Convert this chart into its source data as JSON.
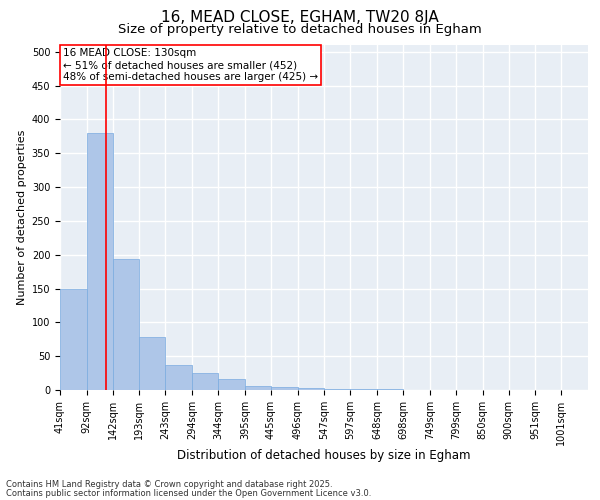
{
  "title1": "16, MEAD CLOSE, EGHAM, TW20 8JA",
  "title2": "Size of property relative to detached houses in Egham",
  "xlabel": "Distribution of detached houses by size in Egham",
  "ylabel": "Number of detached properties",
  "bar_edges": [
    41,
    92,
    142,
    193,
    243,
    294,
    344,
    395,
    445,
    496,
    547,
    597,
    648,
    698,
    749,
    799,
    850,
    900,
    951,
    1001,
    1052
  ],
  "bar_heights": [
    150,
    380,
    193,
    78,
    37,
    25,
    17,
    6,
    5,
    3,
    2,
    1,
    1,
    0,
    0,
    0,
    0,
    0,
    0,
    0
  ],
  "bar_color": "#aec6e8",
  "bar_edge_color": "#7aabe0",
  "vline_x": 130,
  "vline_color": "red",
  "ylim": [
    0,
    510
  ],
  "yticks": [
    0,
    50,
    100,
    150,
    200,
    250,
    300,
    350,
    400,
    450,
    500
  ],
  "annotation_title": "16 MEAD CLOSE: 130sqm",
  "annotation_line1": "← 51% of detached houses are smaller (452)",
  "annotation_line2": "48% of semi-detached houses are larger (425) →",
  "annotation_box_color": "red",
  "annotation_bg_color": "white",
  "background_color": "#e8eef5",
  "grid_color": "white",
  "footnote1": "Contains HM Land Registry data © Crown copyright and database right 2025.",
  "footnote2": "Contains public sector information licensed under the Open Government Licence v3.0.",
  "title1_fontsize": 11,
  "title2_fontsize": 9.5,
  "xlabel_fontsize": 8.5,
  "ylabel_fontsize": 8,
  "tick_fontsize": 7,
  "annot_fontsize": 7.5,
  "footnote_fontsize": 6.0
}
